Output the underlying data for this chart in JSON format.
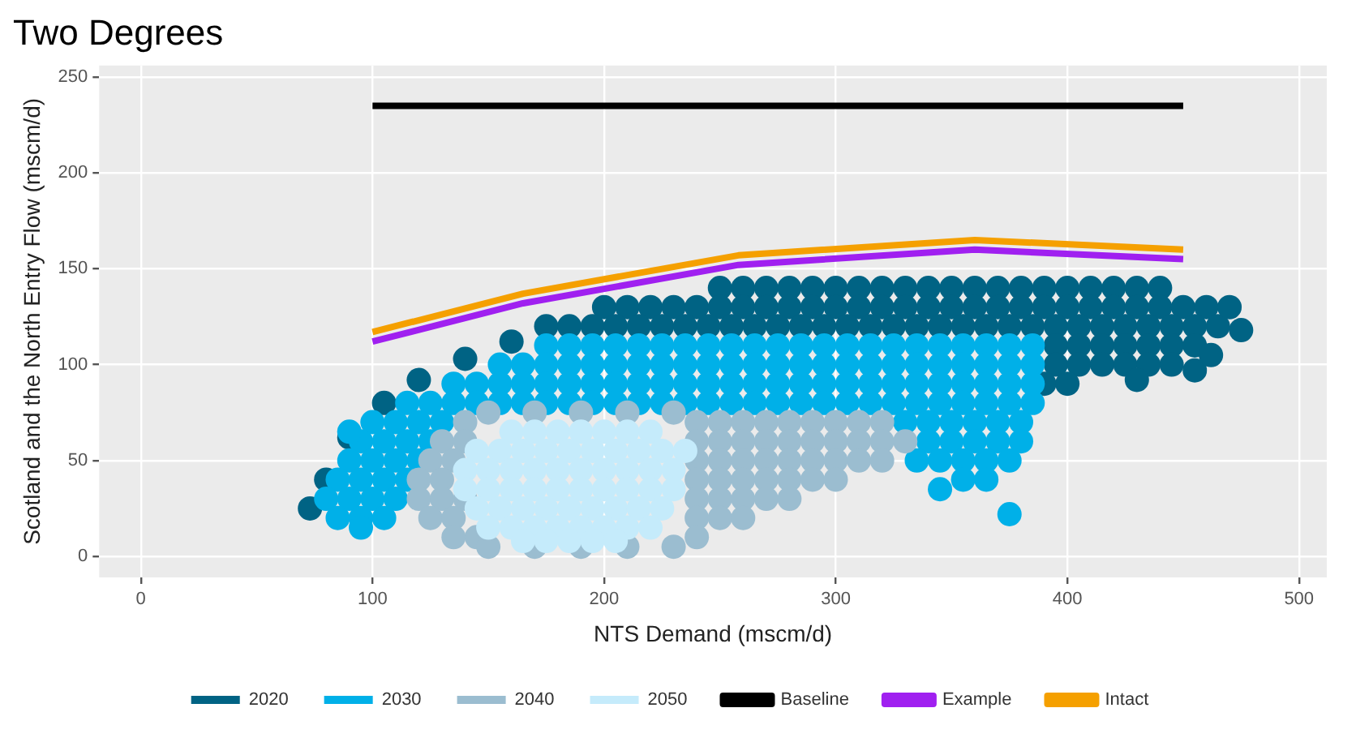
{
  "chart_data": {
    "type": "scatter",
    "title": "Two Degrees",
    "xlabel": "NTS Demand (mscm/d)",
    "ylabel": "Scotland and the North Entry Flow (mscm/d)",
    "xlim": [
      -18,
      512
    ],
    "ylim": [
      -11,
      256
    ],
    "xticks": [
      0,
      100,
      200,
      300,
      400,
      500
    ],
    "yticks": [
      0,
      50,
      100,
      150,
      200,
      250
    ],
    "grid": true,
    "legend": "bottom",
    "marker": "circle",
    "series": [
      {
        "name": "2020",
        "color": "#006384",
        "x": [
          250,
          260,
          270,
          280,
          290,
          300,
          310,
          320,
          330,
          340,
          350,
          360,
          370,
          380,
          390,
          400,
          410,
          420,
          430,
          440,
          200,
          210,
          220,
          230,
          240,
          250,
          260,
          270,
          280,
          290,
          300,
          310,
          320,
          330,
          340,
          350,
          360,
          370,
          380,
          390,
          400,
          410,
          420,
          430,
          440,
          450,
          460,
          175,
          185,
          195,
          205,
          215,
          225,
          235,
          245,
          255,
          265,
          275,
          285,
          295,
          305,
          315,
          325,
          335,
          345,
          355,
          365,
          375,
          385,
          395,
          405,
          415,
          425,
          435,
          445,
          455,
          465,
          395,
          405,
          415,
          425,
          435,
          445,
          455,
          395,
          405,
          415,
          425,
          435,
          445,
          390,
          400,
          470,
          475,
          455,
          430,
          462,
          160,
          140,
          120,
          105,
          90,
          80,
          73
        ],
        "values": [
          140,
          140,
          140,
          140,
          140,
          140,
          140,
          140,
          140,
          140,
          140,
          140,
          140,
          140,
          140,
          140,
          140,
          140,
          140,
          140,
          130,
          130,
          130,
          130,
          130,
          130,
          130,
          130,
          130,
          130,
          130,
          130,
          130,
          130,
          130,
          130,
          130,
          130,
          130,
          130,
          130,
          130,
          130,
          130,
          130,
          130,
          130,
          120,
          120,
          120,
          120,
          120,
          120,
          120,
          120,
          120,
          120,
          120,
          120,
          120,
          120,
          120,
          120,
          120,
          120,
          120,
          120,
          120,
          120,
          120,
          120,
          120,
          120,
          120,
          120,
          120,
          120,
          110,
          110,
          110,
          110,
          110,
          110,
          110,
          100,
          100,
          100,
          100,
          100,
          100,
          90,
          90,
          130,
          118,
          97,
          92,
          105,
          112,
          103,
          92,
          80,
          62,
          40,
          25
        ]
      },
      {
        "name": "2030",
        "color": "#00b0e8",
        "x": [
          175,
          185,
          195,
          205,
          215,
          225,
          235,
          245,
          255,
          265,
          275,
          285,
          295,
          305,
          315,
          325,
          335,
          345,
          355,
          365,
          375,
          385,
          155,
          165,
          175,
          185,
          195,
          205,
          215,
          225,
          235,
          245,
          255,
          265,
          275,
          285,
          295,
          305,
          315,
          325,
          335,
          345,
          355,
          365,
          375,
          385,
          135,
          145,
          155,
          165,
          175,
          185,
          195,
          205,
          215,
          225,
          235,
          245,
          255,
          265,
          275,
          285,
          295,
          305,
          315,
          325,
          335,
          345,
          355,
          365,
          375,
          385,
          115,
          125,
          135,
          145,
          155,
          165,
          175,
          185,
          195,
          205,
          215,
          225,
          235,
          245,
          255,
          265,
          275,
          285,
          295,
          305,
          315,
          325,
          335,
          345,
          355,
          365,
          375,
          385,
          100,
          110,
          120,
          130,
          330,
          340,
          350,
          360,
          370,
          380,
          95,
          105,
          115,
          125,
          340,
          350,
          360,
          370,
          380,
          90,
          100,
          110,
          120,
          335,
          345,
          355,
          365,
          375,
          85,
          95,
          105,
          115,
          355,
          365,
          80,
          90,
          100,
          110,
          85,
          95,
          105,
          90,
          95,
          375,
          345
        ],
        "values": [
          110,
          110,
          110,
          110,
          110,
          110,
          110,
          110,
          110,
          110,
          110,
          110,
          110,
          110,
          110,
          110,
          110,
          110,
          110,
          110,
          110,
          110,
          100,
          100,
          100,
          100,
          100,
          100,
          100,
          100,
          100,
          100,
          100,
          100,
          100,
          100,
          100,
          100,
          100,
          100,
          100,
          100,
          100,
          100,
          100,
          100,
          90,
          90,
          90,
          90,
          90,
          90,
          90,
          90,
          90,
          90,
          90,
          90,
          90,
          90,
          90,
          90,
          90,
          90,
          90,
          90,
          90,
          90,
          90,
          90,
          90,
          90,
          80,
          80,
          80,
          80,
          80,
          80,
          80,
          80,
          80,
          80,
          80,
          80,
          80,
          80,
          80,
          80,
          80,
          80,
          80,
          80,
          80,
          80,
          80,
          80,
          80,
          80,
          80,
          80,
          70,
          70,
          70,
          70,
          70,
          70,
          70,
          70,
          70,
          70,
          60,
          60,
          60,
          60,
          60,
          60,
          60,
          60,
          60,
          50,
          50,
          50,
          50,
          50,
          50,
          50,
          50,
          50,
          40,
          40,
          40,
          40,
          40,
          40,
          30,
          30,
          30,
          30,
          20,
          20,
          20,
          65,
          15,
          22,
          35
        ]
      },
      {
        "name": "2040",
        "color": "#9bbdd0",
        "x": [
          140,
          240,
          250,
          260,
          270,
          280,
          290,
          300,
          310,
          320,
          130,
          140,
          240,
          250,
          260,
          270,
          280,
          290,
          300,
          310,
          320,
          330,
          125,
          135,
          240,
          250,
          260,
          270,
          280,
          290,
          300,
          310,
          320,
          120,
          130,
          240,
          250,
          260,
          270,
          280,
          290,
          300,
          120,
          130,
          140,
          240,
          250,
          260,
          270,
          280,
          125,
          135,
          240,
          250,
          260,
          135,
          145,
          240,
          150,
          170,
          190,
          210,
          230,
          150,
          170,
          190,
          210,
          230
        ],
        "values": [
          70,
          70,
          70,
          70,
          70,
          70,
          70,
          70,
          70,
          70,
          60,
          60,
          60,
          60,
          60,
          60,
          60,
          60,
          60,
          60,
          60,
          60,
          50,
          50,
          50,
          50,
          50,
          50,
          50,
          50,
          50,
          50,
          50,
          40,
          40,
          40,
          40,
          40,
          40,
          40,
          40,
          40,
          30,
          30,
          30,
          30,
          30,
          30,
          30,
          30,
          20,
          20,
          20,
          20,
          20,
          10,
          10,
          10,
          5,
          5,
          5,
          5,
          5,
          75,
          75,
          75,
          75,
          75
        ]
      },
      {
        "name": "2050",
        "color": "#c5ebfb",
        "x": [
          160,
          170,
          180,
          190,
          200,
          210,
          220,
          145,
          155,
          165,
          175,
          185,
          195,
          205,
          215,
          225,
          235,
          140,
          150,
          160,
          170,
          180,
          190,
          200,
          210,
          220,
          230,
          140,
          150,
          160,
          170,
          180,
          190,
          200,
          210,
          220,
          230,
          145,
          155,
          165,
          175,
          185,
          195,
          205,
          215,
          225,
          150,
          160,
          170,
          180,
          190,
          200,
          210,
          220,
          165,
          175,
          185,
          195,
          205
        ],
        "values": [
          65,
          65,
          65,
          65,
          65,
          65,
          65,
          55,
          55,
          55,
          55,
          55,
          55,
          55,
          55,
          55,
          55,
          45,
          45,
          45,
          45,
          45,
          45,
          45,
          45,
          45,
          45,
          35,
          35,
          35,
          35,
          35,
          35,
          35,
          35,
          35,
          35,
          25,
          25,
          25,
          25,
          25,
          25,
          25,
          25,
          25,
          15,
          15,
          15,
          15,
          15,
          15,
          15,
          15,
          8,
          8,
          8,
          8,
          8
        ]
      },
      {
        "name": "Baseline",
        "type": "line",
        "marker": "none",
        "color": "#000000",
        "x": [
          100,
          450
        ],
        "values": [
          235,
          235
        ]
      },
      {
        "name": "Example",
        "type": "line",
        "marker": "none",
        "color": "#a020f0",
        "x": [
          100,
          165,
          258,
          360,
          450
        ],
        "values": [
          112,
          132,
          152,
          160,
          155
        ]
      },
      {
        "name": "Intact",
        "type": "line",
        "marker": "none",
        "color": "#f5a000",
        "x": [
          100,
          165,
          258,
          360,
          450
        ],
        "values": [
          117,
          137,
          157,
          165,
          160
        ]
      }
    ]
  }
}
